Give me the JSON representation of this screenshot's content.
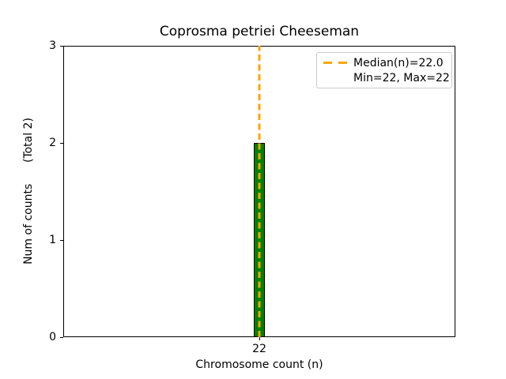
{
  "figure": {
    "title": "Coprosma petriei Cheeseman",
    "xlabel": "Chromosome count (n)",
    "ylabel": "Num of counts      (Total 2)"
  },
  "legend": {
    "position": "upper right",
    "items": [
      {
        "label": "Median(n)=22.0",
        "marker": "orange-dashed-line"
      },
      {
        "label": "Min=22, Max=22",
        "marker": "none"
      }
    ]
  },
  "chart_data": {
    "type": "bar",
    "title": "Coprosma petriei Cheeseman",
    "xlabel": "Chromosome count (n)",
    "ylabel": "Num of counts      (Total 2)",
    "categories": [
      22
    ],
    "values": [
      2
    ],
    "bars": [
      {
        "x": 22,
        "count": 2
      }
    ],
    "total_counts": 2,
    "median": 22.0,
    "min": 22,
    "max": 22,
    "xlim": [
      21.45,
      22.55
    ],
    "ylim": [
      0,
      3
    ],
    "xticks": [
      22
    ],
    "yticks": [
      0,
      1,
      2,
      3
    ],
    "bar_width": 0.033,
    "grid": false,
    "colors": {
      "bar_fill": "#008000",
      "bar_edge": "#000000",
      "median_line": "#FFA500",
      "axes": "#000000",
      "legend_border": "#cccccc",
      "background": "#ffffff"
    }
  }
}
